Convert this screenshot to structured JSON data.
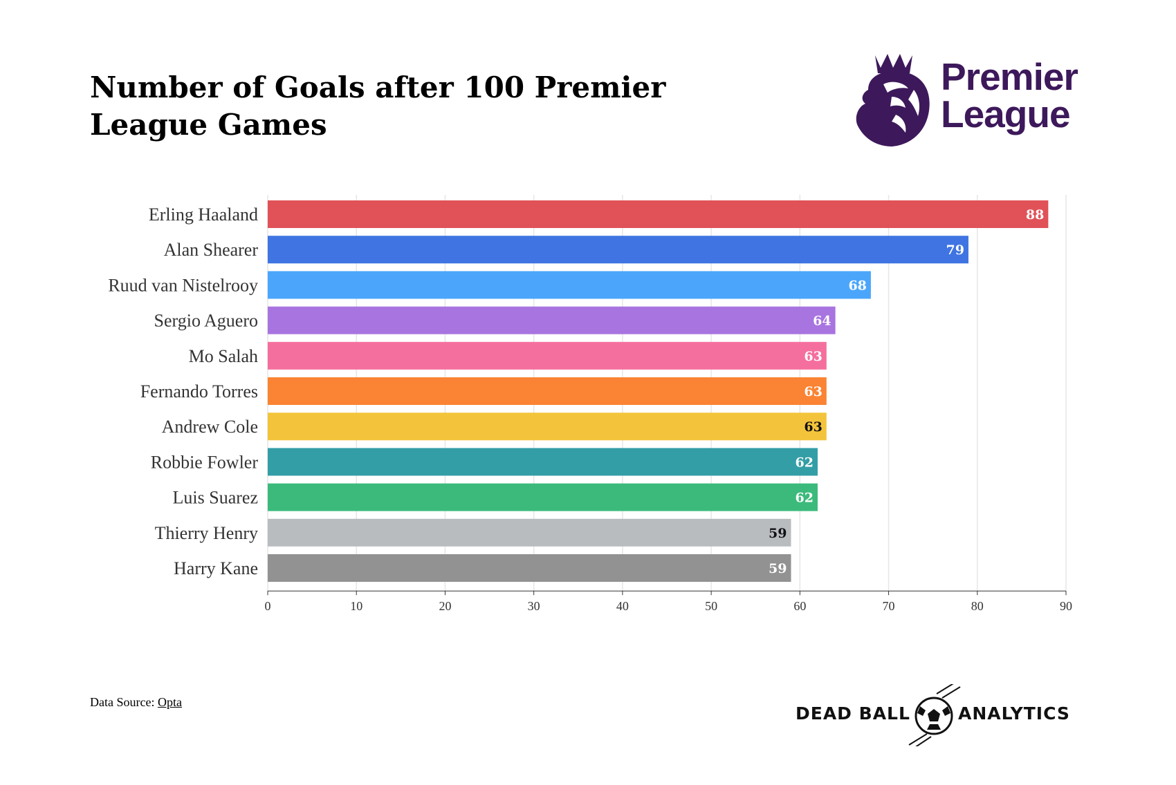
{
  "title": "Number of Goals after 100 Premier League Games",
  "logo": {
    "text_line1": "Premier",
    "text_line2": "League",
    "color": "#3d195b"
  },
  "source": {
    "label": "Data Source: ",
    "link_text": "Opta"
  },
  "brand": {
    "left": "DEAD BALL",
    "right": "ANALYTICS"
  },
  "chart_data": {
    "type": "bar",
    "orientation": "horizontal",
    "title": "Number of Goals after 100 Premier League Games",
    "xlabel": "",
    "ylabel": "",
    "xlim": [
      0,
      90
    ],
    "xticks": [
      0,
      10,
      20,
      30,
      40,
      50,
      60,
      70,
      80,
      90
    ],
    "grid": true,
    "categories": [
      "Erling Haaland",
      "Alan Shearer",
      "Ruud van Nistelrooy",
      "Sergio Aguero",
      "Mo Salah",
      "Fernando Torres",
      "Andrew Cole",
      "Robbie Fowler",
      "Luis Suarez",
      "Thierry Henry",
      "Harry Kane"
    ],
    "values": [
      88,
      79,
      68,
      64,
      63,
      63,
      63,
      62,
      62,
      59,
      59
    ],
    "colors": [
      "#e05258",
      "#3f74e2",
      "#4ba6fb",
      "#a874e0",
      "#f56f9e",
      "#fa8433",
      "#f3c43b",
      "#339ea6",
      "#3cba7b",
      "#b8bcbf",
      "#929292"
    ],
    "label_colors": [
      "#ffffff",
      "#ffffff",
      "#ffffff",
      "#ffffff",
      "#ffffff",
      "#ffffff",
      "#111111",
      "#ffffff",
      "#ffffff",
      "#111111",
      "#ffffff"
    ]
  }
}
